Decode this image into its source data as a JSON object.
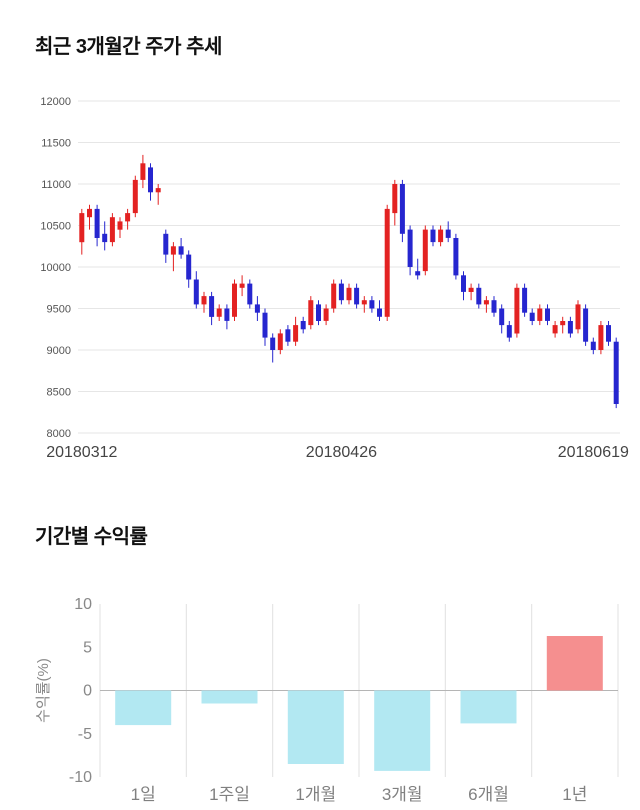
{
  "page": {
    "background": "#ffffff"
  },
  "chart_data": [
    {
      "type": "candlestick",
      "title": "최근 3개월간 주가 추세",
      "ylim": [
        8000,
        12000
      ],
      "y_ticks": [
        8000,
        8500,
        9000,
        9500,
        10000,
        10500,
        11000,
        11500,
        12000
      ],
      "x_ticks": [
        {
          "index": 0,
          "label": "20180312"
        },
        {
          "index": 34,
          "label": "20180426"
        },
        {
          "index": 67,
          "label": "20180619"
        }
      ],
      "up_color": "#e32222",
      "down_color": "#2626cf",
      "grid_color": "#e6e6e6",
      "axis_text_color": "#555555",
      "x_text_color": "#444444",
      "candles": [
        [
          10300,
          10700,
          10150,
          10650
        ],
        [
          10600,
          10750,
          10450,
          10700
        ],
        [
          10700,
          10750,
          10250,
          10350
        ],
        [
          10400,
          10550,
          10200,
          10300
        ],
        [
          10300,
          10650,
          10250,
          10600
        ],
        [
          10450,
          10600,
          10350,
          10550
        ],
        [
          10550,
          10700,
          10450,
          10650
        ],
        [
          10650,
          11100,
          10600,
          11050
        ],
        [
          11050,
          11350,
          10950,
          11250
        ],
        [
          11200,
          11250,
          10800,
          10900
        ],
        [
          10900,
          11000,
          10750,
          10950
        ],
        [
          10400,
          10450,
          10050,
          10150
        ],
        [
          10150,
          10300,
          9950,
          10250
        ],
        [
          10250,
          10350,
          10100,
          10150
        ],
        [
          10150,
          10200,
          9750,
          9850
        ],
        [
          9850,
          9950,
          9500,
          9550
        ],
        [
          9550,
          9700,
          9450,
          9650
        ],
        [
          9650,
          9700,
          9300,
          9400
        ],
        [
          9400,
          9550,
          9350,
          9500
        ],
        [
          9500,
          9550,
          9250,
          9350
        ],
        [
          9400,
          9850,
          9350,
          9800
        ],
        [
          9750,
          9900,
          9650,
          9800
        ],
        [
          9800,
          9850,
          9500,
          9550
        ],
        [
          9550,
          9650,
          9350,
          9450
        ],
        [
          9450,
          9500,
          9050,
          9150
        ],
        [
          9150,
          9200,
          8850,
          9000
        ],
        [
          9000,
          9250,
          8950,
          9200
        ],
        [
          9250,
          9300,
          9050,
          9100
        ],
        [
          9100,
          9400,
          9050,
          9300
        ],
        [
          9350,
          9400,
          9200,
          9250
        ],
        [
          9300,
          9650,
          9250,
          9600
        ],
        [
          9550,
          9600,
          9300,
          9350
        ],
        [
          9350,
          9550,
          9300,
          9500
        ],
        [
          9500,
          9850,
          9450,
          9800
        ],
        [
          9800,
          9850,
          9550,
          9600
        ],
        [
          9600,
          9800,
          9550,
          9750
        ],
        [
          9750,
          9800,
          9500,
          9550
        ],
        [
          9550,
          9650,
          9450,
          9600
        ],
        [
          9600,
          9650,
          9450,
          9500
        ],
        [
          9500,
          9600,
          9350,
          9400
        ],
        [
          9400,
          10750,
          9350,
          10700
        ],
        [
          10650,
          11050,
          10500,
          11000
        ],
        [
          11000,
          11050,
          10300,
          10400
        ],
        [
          10450,
          10500,
          9900,
          10000
        ],
        [
          9950,
          10100,
          9850,
          9900
        ],
        [
          9950,
          10500,
          9900,
          10450
        ],
        [
          10450,
          10500,
          10250,
          10300
        ],
        [
          10300,
          10500,
          10250,
          10450
        ],
        [
          10450,
          10550,
          10300,
          10350
        ],
        [
          10350,
          10400,
          9850,
          9900
        ],
        [
          9900,
          9950,
          9600,
          9700
        ],
        [
          9700,
          9800,
          9600,
          9750
        ],
        [
          9750,
          9800,
          9500,
          9550
        ],
        [
          9550,
          9650,
          9450,
          9600
        ],
        [
          9600,
          9650,
          9400,
          9450
        ],
        [
          9500,
          9550,
          9200,
          9300
        ],
        [
          9300,
          9350,
          9100,
          9150
        ],
        [
          9200,
          9800,
          9150,
          9750
        ],
        [
          9750,
          9800,
          9400,
          9450
        ],
        [
          9450,
          9500,
          9300,
          9350
        ],
        [
          9350,
          9550,
          9300,
          9500
        ],
        [
          9500,
          9550,
          9300,
          9350
        ],
        [
          9200,
          9350,
          9150,
          9300
        ],
        [
          9300,
          9400,
          9200,
          9350
        ],
        [
          9350,
          9400,
          9150,
          9200
        ],
        [
          9250,
          9600,
          9200,
          9550
        ],
        [
          9500,
          9550,
          9050,
          9100
        ],
        [
          9100,
          9150,
          8950,
          9000
        ],
        [
          9000,
          9350,
          8950,
          9300
        ],
        [
          9300,
          9350,
          9050,
          9100
        ],
        [
          9100,
          9150,
          8300,
          8350
        ]
      ]
    },
    {
      "type": "bar",
      "title": "기간별 수익률",
      "ylabel": "수익률(%)",
      "categories": [
        "1일",
        "1주일",
        "1개월",
        "3개월",
        "6개월",
        "1년"
      ],
      "values": [
        -4.0,
        -1.5,
        -8.5,
        -9.3,
        -3.8,
        6.3
      ],
      "ylim": [
        -10,
        10
      ],
      "y_ticks": [
        10,
        5,
        0,
        -5,
        -10
      ],
      "neg_color": "#b2e8f2",
      "pos_color": "#f58f8f",
      "grid_color": "#e0e0e0",
      "zero_line_color": "#b5b5b5",
      "axis_text_color": "#888888",
      "category_text_color": "#808080"
    }
  ]
}
